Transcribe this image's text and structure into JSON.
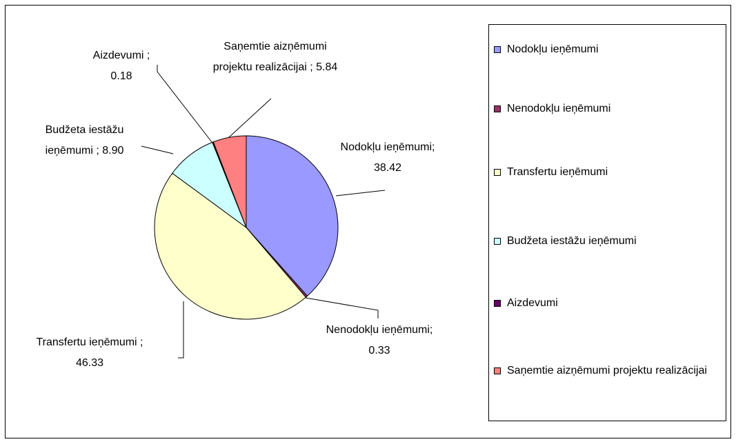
{
  "chart_data": {
    "type": "pie",
    "categories": [
      "Nodokļu ieņēmumi",
      "Nenodokļu ieņēmumi",
      "Transfertu ieņēmumi",
      "Budžeta iestāžu ieņēmumi",
      "Aizdevumi",
      "Saņemtie aizņēmumi projektu realizācijai"
    ],
    "values": [
      38.42,
      0.33,
      46.33,
      8.9,
      0.18,
      5.84
    ],
    "value_labels": [
      "Nodokļu ieņēmumi; 38.42",
      "Nenodokļu ieņēmumi; 0.33",
      "Transfertu ieņēmumi ; 46.33",
      "Budžeta iestāžu ieņēmumi ; 8.90",
      "Aizdevumi ; 0.18",
      "Saņemtie aizņēmumi projektu realizācijai ; 5.84"
    ],
    "colors": [
      "#9999ff",
      "#993366",
      "#ffffcc",
      "#ccffff",
      "#660066",
      "#ff8080"
    ],
    "legend": "right"
  }
}
